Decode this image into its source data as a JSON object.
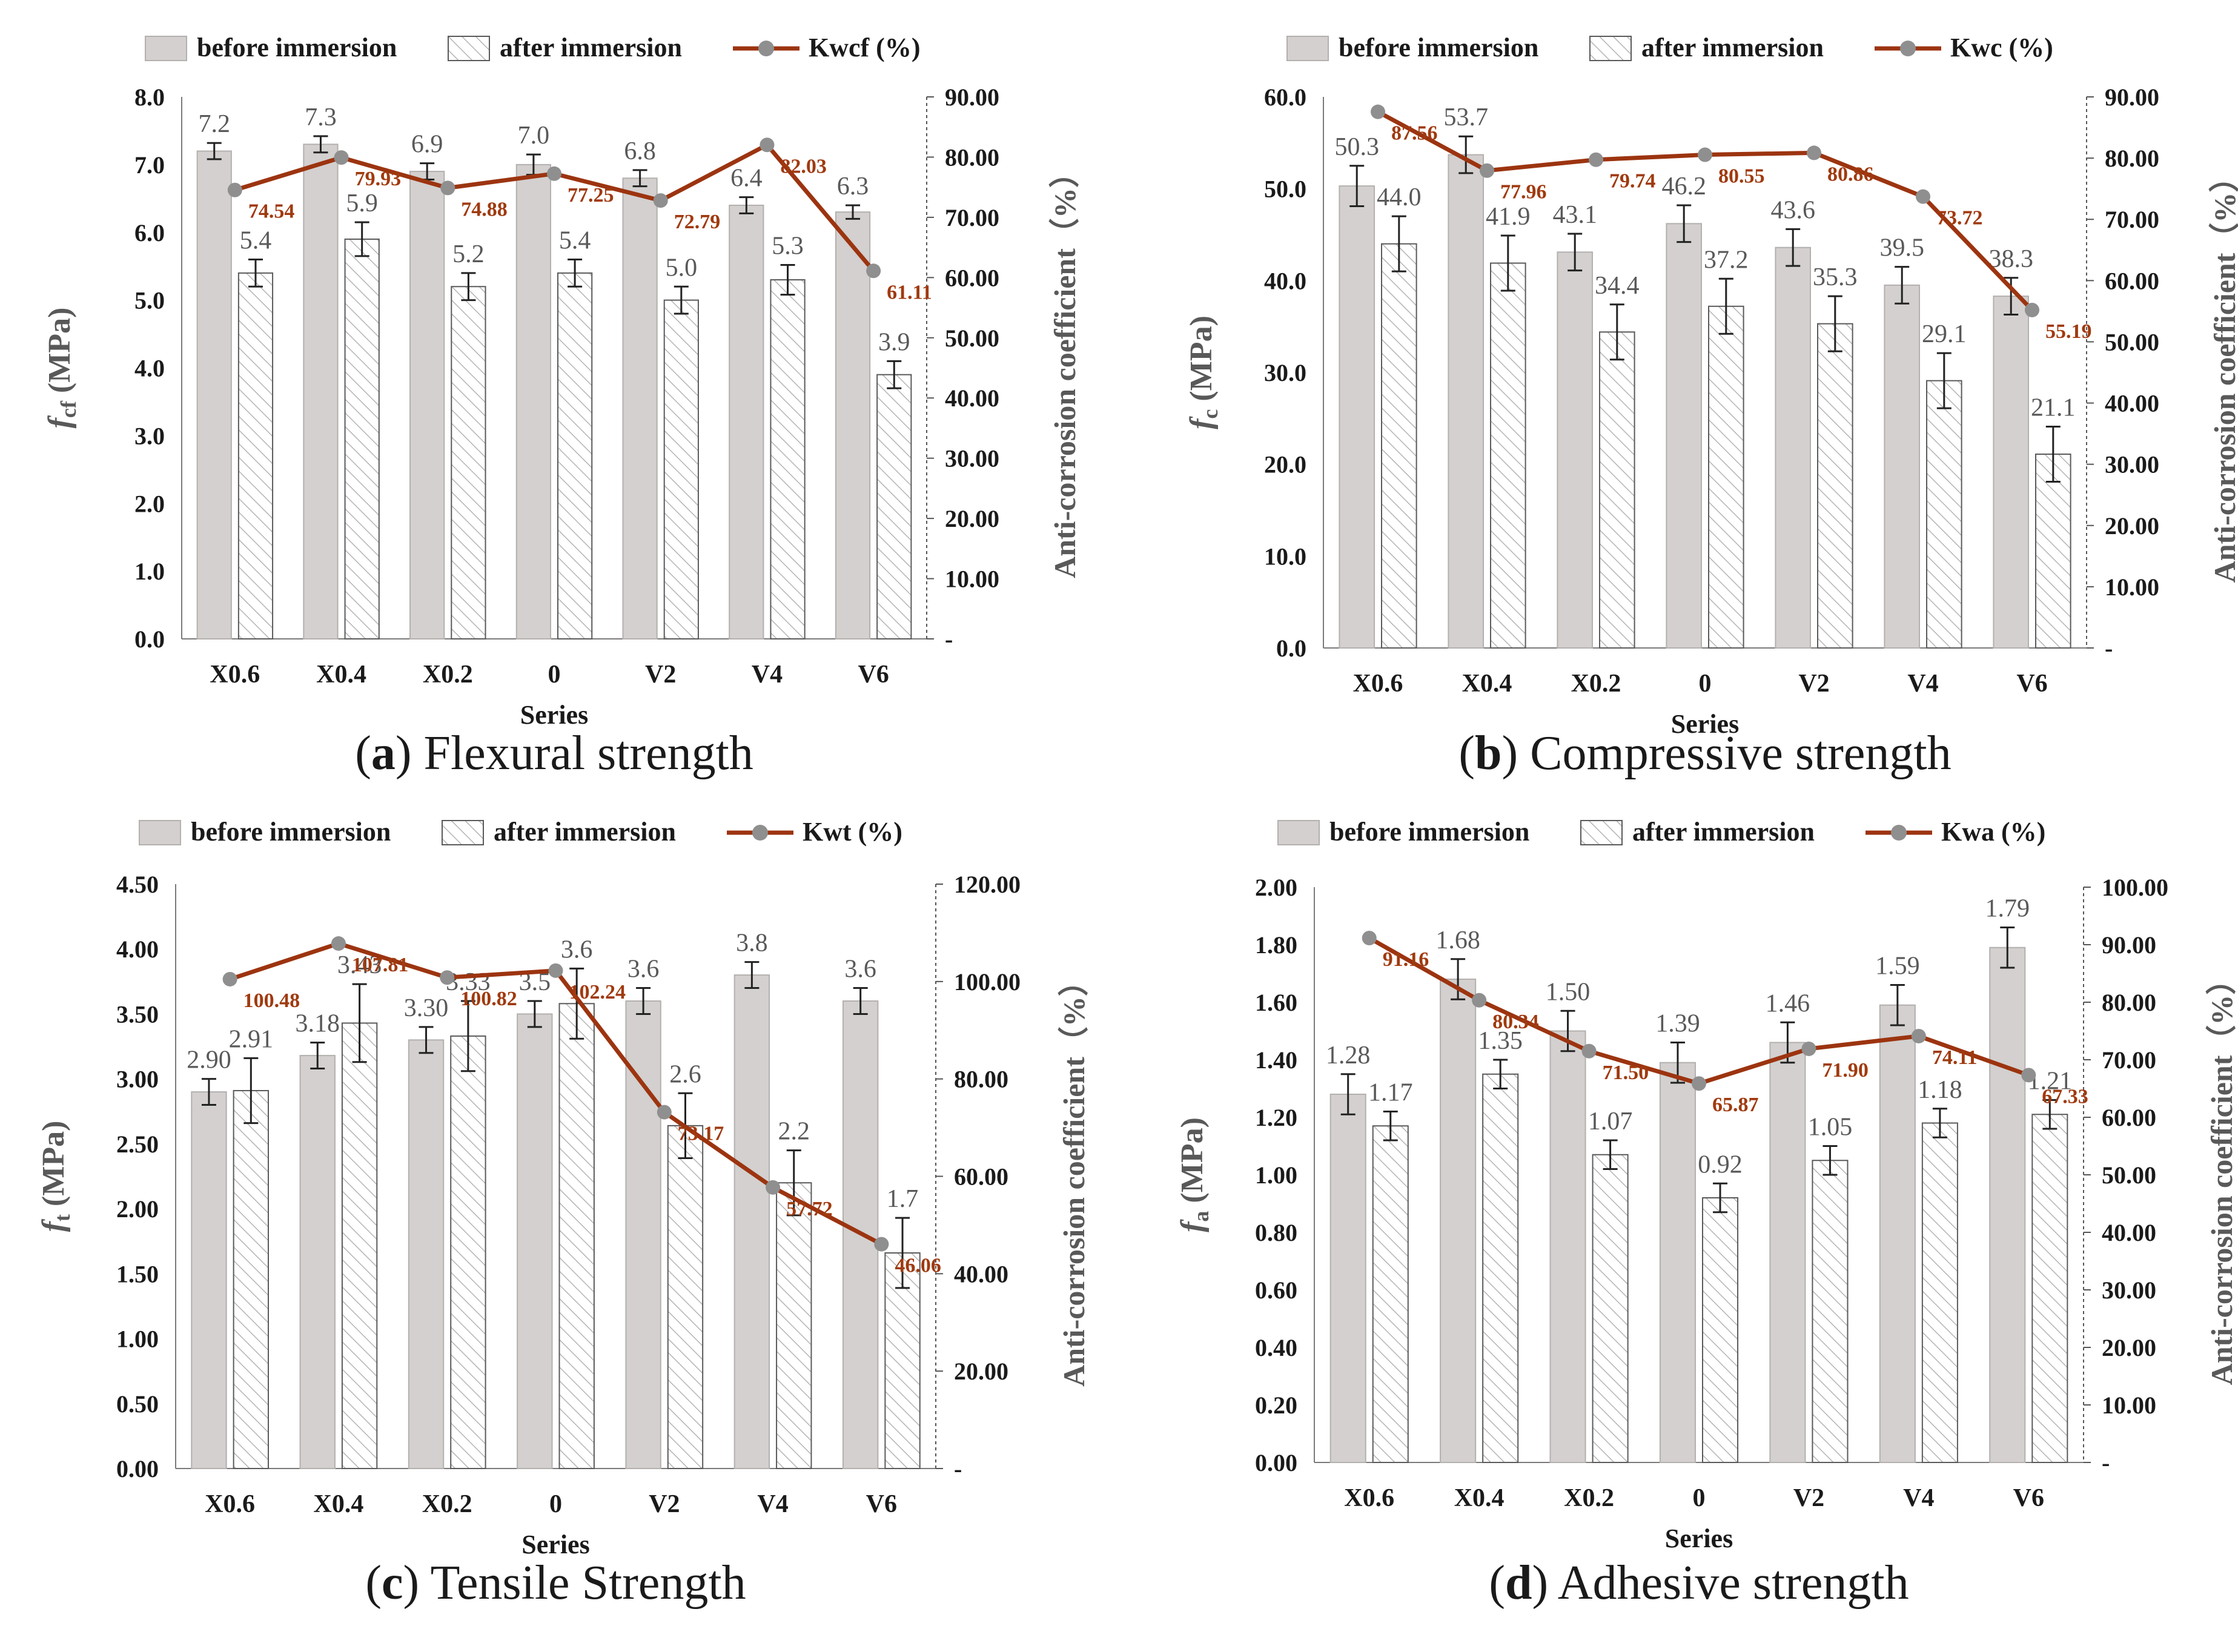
{
  "series_label": "Series",
  "right_axis_label": "Anti-corrosion coefficient（%）",
  "legend": {
    "before": "before immersion",
    "after": "after immersion"
  },
  "colors": {
    "before_fill": "#d3d0cf",
    "before_stroke": "#b3b0ae",
    "after_stroke": "#5a5a5a",
    "line": "#9c3410",
    "marker": "#8f8f8f",
    "value_text": "#595959",
    "line_text": "#a03a0f"
  },
  "chart_data": [
    {
      "type": "bar",
      "letter": "a",
      "title": "Flexural strength",
      "ylabel": "f",
      "ylabel_sub": "cf",
      "ylabel_unit": " (MPa)",
      "categories": [
        "X0.6",
        "X0.4",
        "X0.2",
        "0",
        "V2",
        "V4",
        "V6"
      ],
      "ylim": [
        0,
        8
      ],
      "yticks": [
        "0.0",
        "1.0",
        "2.0",
        "3.0",
        "4.0",
        "5.0",
        "6.0",
        "7.0",
        "8.0"
      ],
      "y2lim": [
        0,
        90
      ],
      "y2ticks": [
        "-",
        "10.00",
        "20.00",
        "30.00",
        "40.00",
        "50.00",
        "60.00",
        "70.00",
        "80.00",
        "90.00"
      ],
      "series": [
        {
          "name": "before immersion",
          "values": [
            7.2,
            7.3,
            6.9,
            7.0,
            6.8,
            6.4,
            6.3
          ],
          "labels": [
            "7.2",
            "7.3",
            "6.9",
            "7.0",
            "6.8",
            "6.4",
            "6.3"
          ],
          "err": [
            0.12,
            0.12,
            0.12,
            0.15,
            0.12,
            0.12,
            0.1
          ]
        },
        {
          "name": "after immersion",
          "values": [
            5.4,
            5.9,
            5.2,
            5.4,
            5.0,
            5.3,
            3.9
          ],
          "labels": [
            "5.4",
            "5.9",
            "5.2",
            "5.4",
            "5.0",
            "5.3",
            "3.9"
          ],
          "err": [
            0.2,
            0.25,
            0.2,
            0.2,
            0.2,
            0.22,
            0.2
          ]
        }
      ],
      "line": {
        "name": "Kwcf (%)",
        "values": [
          74.54,
          79.93,
          74.88,
          77.25,
          72.79,
          82.03,
          61.11
        ],
        "labels": [
          "74.54",
          "79.93",
          "74.88",
          "77.25",
          "72.79",
          "82.03",
          "61.11"
        ]
      },
      "grid": false
    },
    {
      "type": "bar",
      "letter": "b",
      "title": "Compressive strength",
      "ylabel": "f",
      "ylabel_sub": "c",
      "ylabel_unit": " (MPa)",
      "categories": [
        "X0.6",
        "X0.4",
        "X0.2",
        "0",
        "V2",
        "V4",
        "V6"
      ],
      "ylim": [
        0,
        60
      ],
      "yticks": [
        "0.0",
        "10.0",
        "20.0",
        "30.0",
        "40.0",
        "50.0",
        "60.0"
      ],
      "y2lim": [
        0,
        90
      ],
      "y2ticks": [
        "-",
        "10.00",
        "20.00",
        "30.00",
        "40.00",
        "50.00",
        "60.00",
        "70.00",
        "80.00",
        "90.00"
      ],
      "series": [
        {
          "name": "before immersion",
          "values": [
            50.3,
            53.7,
            43.1,
            46.2,
            43.6,
            39.5,
            38.3
          ],
          "labels": [
            "50.3",
            "53.7",
            "43.1",
            "46.2",
            "43.6",
            "39.5",
            "38.3"
          ],
          "err": [
            2.2,
            2.0,
            2.0,
            2.0,
            2.0,
            2.0,
            2.0
          ]
        },
        {
          "name": "after immersion",
          "values": [
            44.0,
            41.9,
            34.4,
            37.2,
            35.3,
            29.1,
            21.1
          ],
          "labels": [
            "44.0",
            "41.9",
            "34.4",
            "37.2",
            "35.3",
            "29.1",
            "21.1"
          ],
          "err": [
            3.0,
            3.0,
            3.0,
            3.0,
            3.0,
            3.0,
            3.0
          ]
        }
      ],
      "line": {
        "name": "Kwc (%)",
        "values": [
          87.56,
          77.96,
          79.74,
          80.55,
          80.86,
          73.72,
          55.19
        ],
        "labels": [
          "87.56",
          "77.96",
          "79.74",
          "80.55",
          "80.86",
          "73.72",
          "55.19"
        ]
      },
      "grid": false
    },
    {
      "type": "bar",
      "letter": "c",
      "title": "Tensile Strength",
      "ylabel": "f",
      "ylabel_sub": "t",
      "ylabel_unit": " (MPa)",
      "categories": [
        "X0.6",
        "X0.4",
        "X0.2",
        "0",
        "V2",
        "V4",
        "V6"
      ],
      "ylim": [
        0,
        4.5
      ],
      "yticks": [
        "0.00",
        "0.50",
        "1.00",
        "1.50",
        "2.00",
        "2.50",
        "3.00",
        "3.50",
        "4.00",
        "4.50"
      ],
      "y2lim": [
        0,
        120
      ],
      "y2ticks": [
        "-",
        "20.00",
        "40.00",
        "60.00",
        "80.00",
        "100.00",
        "120.00"
      ],
      "series": [
        {
          "name": "before immersion",
          "values": [
            2.9,
            3.18,
            3.3,
            3.5,
            3.6,
            3.8,
            3.6
          ],
          "labels": [
            "2.90",
            "3.18",
            "3.30",
            "3.5",
            "3.6",
            "3.8",
            "3.6"
          ],
          "err": [
            0.1,
            0.1,
            0.1,
            0.1,
            0.1,
            0.1,
            0.1
          ]
        },
        {
          "name": "after immersion",
          "values": [
            2.91,
            3.43,
            3.33,
            3.58,
            2.64,
            2.2,
            1.66
          ],
          "labels": [
            "2.91",
            "3.43",
            "3.33",
            "3.6",
            "2.6",
            "2.2",
            "1.7"
          ],
          "err": [
            0.25,
            0.3,
            0.27,
            0.27,
            0.25,
            0.25,
            0.27
          ]
        }
      ],
      "line": {
        "name": "Kwt (%)",
        "values": [
          100.48,
          107.81,
          100.82,
          102.24,
          73.17,
          57.72,
          46.06
        ],
        "labels": [
          "100.48",
          "107.81",
          "100.82",
          "102.24",
          "73.17",
          "57.72",
          "46.06"
        ]
      },
      "grid": false
    },
    {
      "type": "bar",
      "letter": "d",
      "title": "Adhesive strength",
      "ylabel": "f",
      "ylabel_sub": "a",
      "ylabel_unit": " (MPa)",
      "categories": [
        "X0.6",
        "X0.4",
        "X0.2",
        "0",
        "V2",
        "V4",
        "V6"
      ],
      "ylim": [
        0,
        2
      ],
      "yticks": [
        "0.00",
        "0.20",
        "0.40",
        "0.60",
        "0.80",
        "1.00",
        "1.20",
        "1.40",
        "1.60",
        "1.80",
        "2.00"
      ],
      "y2lim": [
        0,
        100
      ],
      "y2ticks": [
        "-",
        "10.00",
        "20.00",
        "30.00",
        "40.00",
        "50.00",
        "60.00",
        "70.00",
        "80.00",
        "90.00",
        "100.00"
      ],
      "series": [
        {
          "name": "before immersion",
          "values": [
            1.28,
            1.68,
            1.5,
            1.39,
            1.46,
            1.59,
            1.79
          ],
          "labels": [
            "1.28",
            "1.68",
            "1.50",
            "1.39",
            "1.46",
            "1.59",
            "1.79"
          ],
          "err": [
            0.07,
            0.07,
            0.07,
            0.07,
            0.07,
            0.07,
            0.07
          ]
        },
        {
          "name": "after immersion",
          "values": [
            1.17,
            1.35,
            1.07,
            0.92,
            1.05,
            1.18,
            1.21
          ],
          "labels": [
            "1.17",
            "1.35",
            "1.07",
            "0.92",
            "1.05",
            "1.18",
            "1.21"
          ],
          "err": [
            0.05,
            0.05,
            0.05,
            0.05,
            0.05,
            0.05,
            0.05
          ]
        }
      ],
      "line": {
        "name": "Kwa (%)",
        "values": [
          91.16,
          80.34,
          71.5,
          65.87,
          71.9,
          74.11,
          67.33
        ],
        "labels": [
          "91.16",
          "80.34",
          "71.50",
          "65.87",
          "71.90",
          "74.11",
          "67.33"
        ]
      },
      "grid": false
    }
  ]
}
